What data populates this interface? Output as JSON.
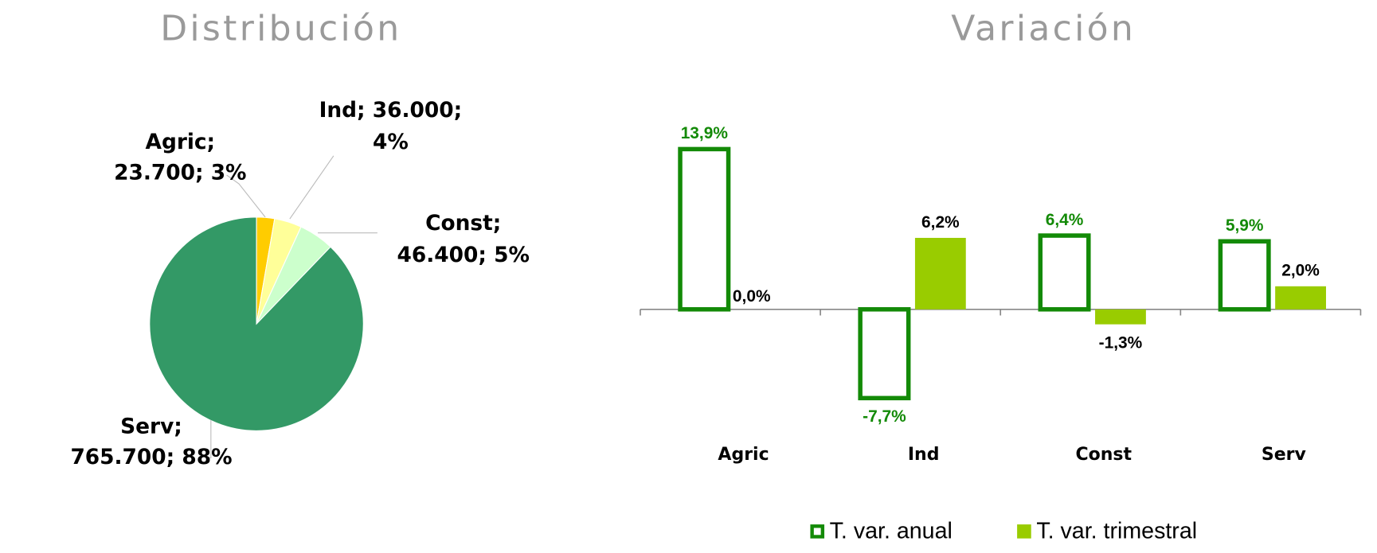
{
  "chart_data": [
    {
      "type": "pie",
      "title": "Distribución",
      "categories": [
        "Agric",
        "Ind",
        "Const",
        "Serv"
      ],
      "values": [
        23700,
        36000,
        46400,
        765700
      ],
      "value_labels": [
        [
          "Agric;",
          "23.700; 3%"
        ],
        [
          "Ind; 36.000;",
          "4%"
        ],
        [
          "Const;",
          "46.400; 5%"
        ],
        [
          "Serv;",
          "765.700; 88%"
        ]
      ],
      "colors": [
        "#ffcc00",
        "#ffff99",
        "#ccffcc",
        "#339966"
      ]
    },
    {
      "type": "bar",
      "title": "Variación",
      "categories": [
        "Agric",
        "Ind",
        "Const",
        "Serv"
      ],
      "series": [
        {
          "name": "T. var. anual",
          "color": "#138a07",
          "values": [
            13.9,
            -7.7,
            6.4,
            5.9
          ],
          "value_labels": [
            "13,9%",
            "-7,7%",
            "6,4%",
            "5,9%"
          ]
        },
        {
          "name": "T. var. trimestral",
          "color": "#99cc00",
          "values": [
            0.0,
            6.2,
            -1.3,
            2.0
          ],
          "value_labels": [
            "0,0%",
            "6,2%",
            "-1,3%",
            "2,0%"
          ]
        }
      ],
      "ylim": [
        -10,
        20
      ],
      "legend": "bottom"
    }
  ]
}
